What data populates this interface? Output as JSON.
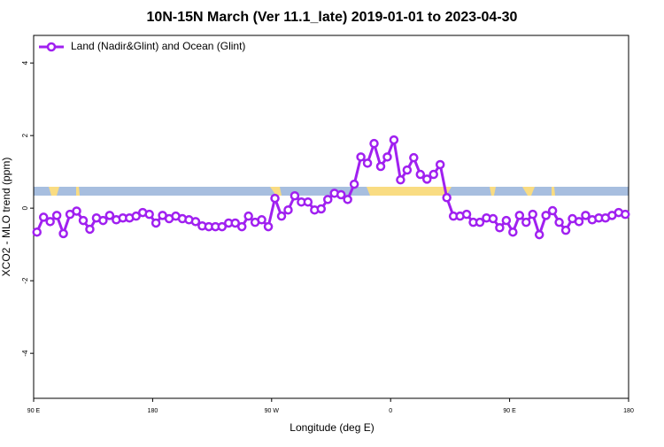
{
  "chart_data": {
    "type": "line",
    "title": "10N-15N March (Ver 11.1_late)   2019-01-01 to 2023-04-30",
    "xlabel": "Longitude (deg E)",
    "ylabel": "XCO2 - MLO trend (ppm)",
    "x": [
      92.5,
      97.5,
      102.5,
      107.5,
      112.5,
      117.5,
      122.5,
      127.5,
      132.5,
      137.5,
      142.5,
      147.5,
      152.5,
      157.5,
      162.5,
      167.5,
      172.5,
      177.5,
      182.5,
      187.5,
      192.5,
      197.5,
      202.5,
      207.5,
      212.5,
      217.5,
      222.5,
      227.5,
      232.5,
      237.5,
      242.5,
      247.5,
      252.5,
      257.5,
      262.5,
      267.5,
      272.5,
      277.5,
      282.5,
      287.5,
      292.5,
      297.5,
      302.5,
      307.5,
      312.5,
      317.5,
      322.5,
      327.5,
      332.5,
      337.5,
      342.5,
      347.5,
      352.5,
      357.5,
      362.5,
      367.5,
      372.5,
      377.5,
      382.5,
      387.5,
      392.5,
      397.5,
      402.5,
      407.5,
      412.5,
      417.5,
      422.5,
      427.5,
      432.5,
      437.5,
      442.5,
      447.5,
      452.5,
      457.5,
      462.5,
      467.5,
      472.5,
      477.5,
      482.5,
      487.5,
      492.5,
      497.5,
      502.5,
      507.5,
      512.5,
      517.5,
      522.5,
      527.5,
      532.5,
      537.5
    ],
    "series": [
      {
        "name": "Land (Nadir&Glint) and Ocean (Glint)",
        "color": "#a020f0",
        "values": [
          -0.66,
          -0.25,
          -0.37,
          -0.2,
          -0.7,
          -0.17,
          -0.08,
          -0.34,
          -0.58,
          -0.27,
          -0.34,
          -0.2,
          -0.32,
          -0.27,
          -0.27,
          -0.22,
          -0.12,
          -0.17,
          -0.41,
          -0.2,
          -0.29,
          -0.22,
          -0.29,
          -0.32,
          -0.37,
          -0.49,
          -0.51,
          -0.51,
          -0.51,
          -0.41,
          -0.41,
          -0.51,
          -0.22,
          -0.39,
          -0.32,
          -0.51,
          0.27,
          -0.22,
          -0.05,
          0.34,
          0.17,
          0.17,
          -0.05,
          -0.02,
          0.24,
          0.41,
          0.37,
          0.24,
          0.66,
          1.41,
          1.24,
          1.78,
          1.15,
          1.41,
          1.88,
          0.78,
          1.05,
          1.39,
          0.93,
          0.8,
          0.93,
          1.2,
          0.29,
          -0.22,
          -0.22,
          -0.17,
          -0.39,
          -0.39,
          -0.27,
          -0.29,
          -0.54,
          -0.34,
          -0.66,
          -0.2,
          -0.39,
          -0.17,
          -0.73,
          -0.2,
          -0.07,
          -0.39,
          -0.61,
          -0.29,
          -0.37,
          -0.2,
          -0.32,
          -0.27,
          -0.27,
          -0.2,
          -0.12,
          -0.17
        ]
      }
    ],
    "xlim": [
      90,
      540
    ],
    "xticks": [
      {
        "value": 90,
        "label": "90 E"
      },
      180,
      {
        "value": 270,
        "label": "90 W"
      },
      {
        "value": 360,
        "label": "0"
      },
      {
        "value": 450,
        "label": "90 E"
      },
      {
        "value": 540,
        "label": "180"
      }
    ],
    "ylim": [
      -5.24,
      4.76
    ],
    "yticks": [
      -4,
      -2,
      0,
      2,
      4
    ],
    "legend": "top-left"
  }
}
